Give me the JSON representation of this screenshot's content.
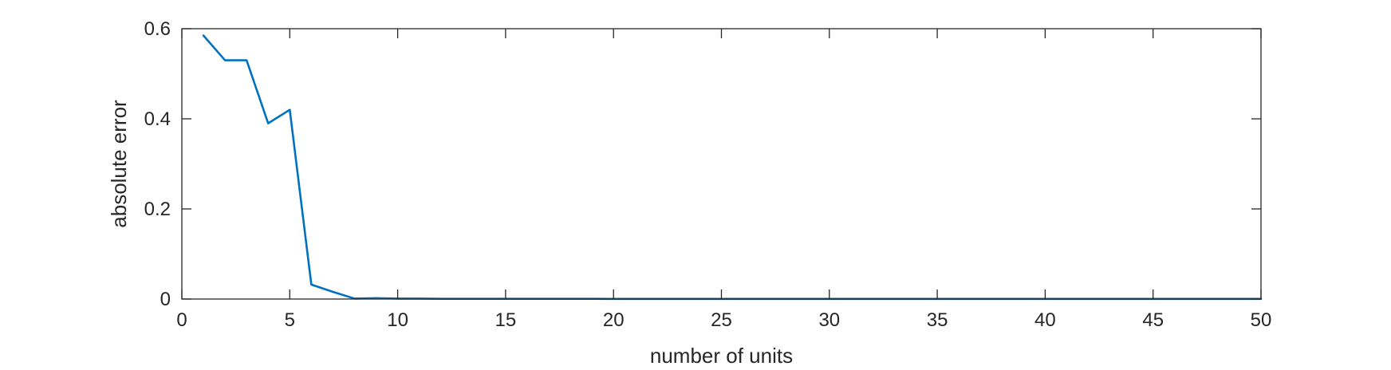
{
  "chart_data": {
    "type": "line",
    "title": "",
    "xlabel": "number of units",
    "ylabel": "absolute error",
    "xlim": [
      0,
      50
    ],
    "ylim": [
      0,
      0.6
    ],
    "xticks": [
      0,
      5,
      10,
      15,
      20,
      25,
      30,
      35,
      40,
      45,
      50
    ],
    "yticks": [
      0,
      0.2,
      0.4,
      0.6
    ],
    "xtick_labels": [
      "0",
      "5",
      "10",
      "15",
      "20",
      "25",
      "30",
      "35",
      "40",
      "45",
      "50"
    ],
    "ytick_labels": [
      "0",
      "0.2",
      "0.4",
      "0.6"
    ],
    "grid": false,
    "legend": null,
    "colors": {
      "series": "#0072BD",
      "axes": "#262626"
    },
    "series": [
      {
        "x": [
          1,
          2,
          3,
          4,
          5,
          6,
          7,
          8,
          9,
          10,
          11,
          12,
          13,
          14,
          15,
          16,
          17,
          18,
          19,
          20,
          21,
          22,
          23,
          24,
          25,
          26,
          27,
          28,
          29,
          30,
          31,
          32,
          33,
          34,
          35,
          36,
          37,
          38,
          39,
          40,
          41,
          42,
          43,
          44,
          45,
          46,
          47,
          48,
          49,
          50
        ],
        "values": [
          0.585,
          0.53,
          0.53,
          0.39,
          0.42,
          0.032,
          0.016,
          0.001,
          0.002,
          0.001,
          0.001,
          0.0005,
          0.0005,
          0.0005,
          0.0005,
          0.0005,
          0.0005,
          0.0005,
          0.0005,
          0.0003,
          0.0003,
          0.0003,
          0.0003,
          0.0003,
          0.0003,
          0.0003,
          0.0003,
          0.0003,
          0.0003,
          0.0003,
          0.0003,
          0.0003,
          0.0003,
          0.0003,
          0.0003,
          0.0003,
          0.0003,
          0.0003,
          0.0003,
          0.0003,
          0.0003,
          0.0003,
          0.0003,
          0.0003,
          0.0003,
          0.0003,
          0.0003,
          0.0003,
          0.0003,
          0.0003
        ]
      }
    ]
  }
}
